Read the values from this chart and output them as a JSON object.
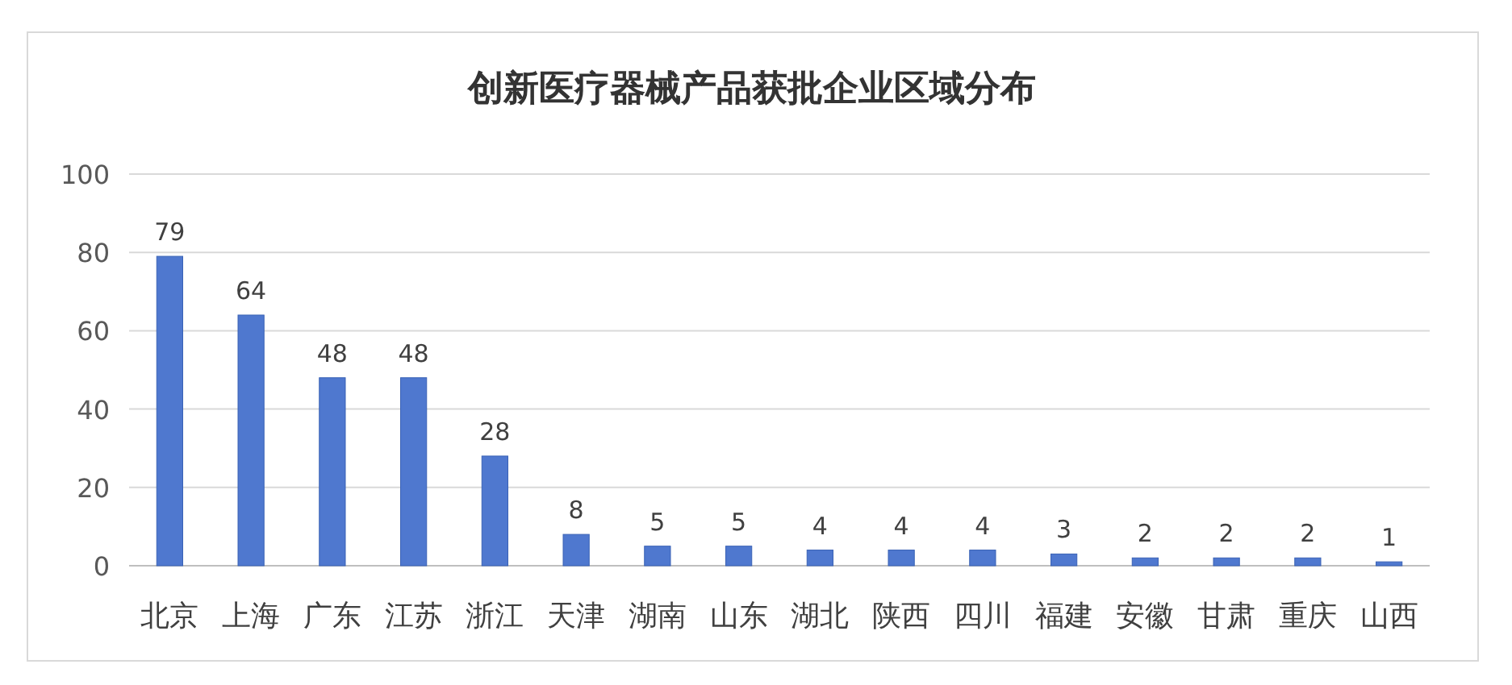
{
  "chart_data": {
    "type": "bar",
    "title": "创新医疗器械产品获批企业区域分布",
    "categories": [
      "北京",
      "上海",
      "广东",
      "江苏",
      "浙江",
      "天津",
      "湖南",
      "山东",
      "湖北",
      "陕西",
      "四川",
      "福建",
      "安徽",
      "甘肃",
      "重庆",
      "山西"
    ],
    "values": [
      79,
      64,
      48,
      48,
      28,
      8,
      5,
      5,
      4,
      4,
      4,
      3,
      2,
      2,
      2,
      1
    ],
    "color": "#4f78cf",
    "ylim": [
      0,
      100
    ],
    "yticks": [
      0,
      20,
      40,
      60,
      80,
      100
    ],
    "grid": "y",
    "data_labels": true
  }
}
